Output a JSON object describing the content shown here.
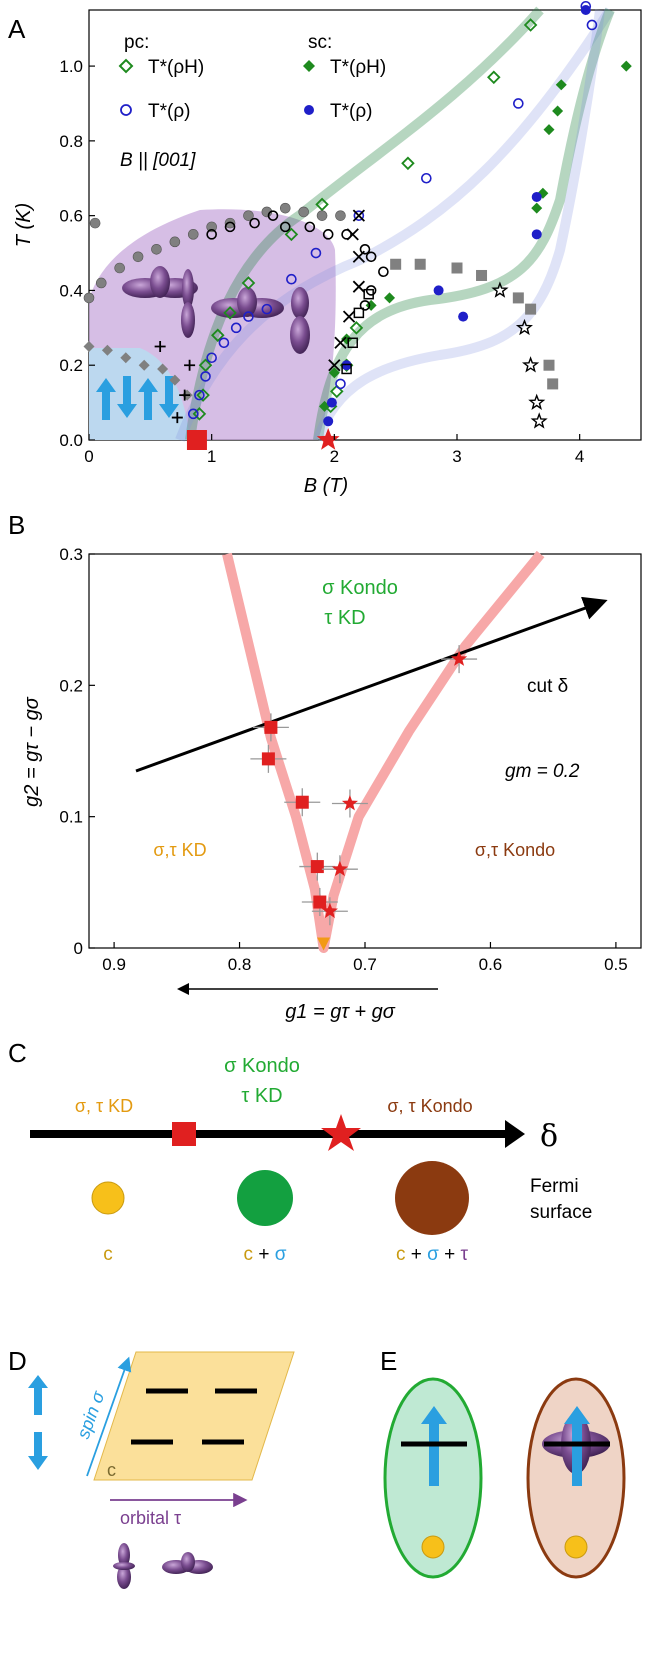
{
  "panels": {
    "a": "A",
    "b": "B",
    "c": "C",
    "d": "D",
    "e": "E"
  },
  "chart_data": [
    {
      "type": "scatter",
      "panel": "A",
      "xlabel": "B (T)",
      "ylabel": "T (K)",
      "xlim": [
        0,
        4.5
      ],
      "ylim": [
        0,
        1.15
      ],
      "xticks": [
        0,
        1,
        2,
        3,
        4
      ],
      "yticks": [
        0.0,
        0.2,
        0.4,
        0.6,
        0.8,
        1.0
      ],
      "legend": {
        "pc_title": "pc:",
        "sc_title": "sc:",
        "entry_rhoH": "T*(ρH)",
        "entry_rho": "T*(ρ)"
      },
      "annotation": "B || [001]",
      "series": [
        {
          "name": "pc T*(ρH)",
          "marker": "open-diamond",
          "color": "#1e8a1e",
          "points": [
            [
              0.9,
              0.07
            ],
            [
              0.93,
              0.12
            ],
            [
              0.95,
              0.2
            ],
            [
              1.05,
              0.28
            ],
            [
              1.15,
              0.34
            ],
            [
              1.3,
              0.42
            ],
            [
              1.65,
              0.55
            ],
            [
              1.9,
              0.63
            ],
            [
              2.6,
              0.74
            ],
            [
              3.3,
              0.97
            ],
            [
              3.6,
              1.11
            ],
            [
              1.97,
              0.09
            ],
            [
              2.02,
              0.13
            ],
            [
              2.1,
              0.2
            ],
            [
              2.18,
              0.3
            ]
          ]
        },
        {
          "name": "pc T*(ρ)",
          "marker": "open-circle",
          "color": "#1f1fc8",
          "points": [
            [
              0.85,
              0.07
            ],
            [
              0.9,
              0.12
            ],
            [
              0.95,
              0.17
            ],
            [
              1.0,
              0.22
            ],
            [
              1.1,
              0.26
            ],
            [
              1.2,
              0.3
            ],
            [
              1.3,
              0.33
            ],
            [
              1.45,
              0.35
            ],
            [
              1.65,
              0.43
            ],
            [
              1.85,
              0.5
            ],
            [
              2.2,
              0.6
            ],
            [
              2.75,
              0.7
            ],
            [
              3.5,
              0.9
            ],
            [
              4.1,
              1.11
            ],
            [
              4.05,
              1.16
            ],
            [
              2.05,
              0.15
            ]
          ]
        },
        {
          "name": "sc T*(ρH)",
          "marker": "filled-diamond",
          "color": "#1e8a1e",
          "points": [
            [
              1.92,
              0.09
            ],
            [
              2.0,
              0.18
            ],
            [
              2.1,
              0.27
            ],
            [
              2.3,
              0.36
            ],
            [
              2.45,
              0.38
            ],
            [
              3.65,
              0.62
            ],
            [
              3.7,
              0.66
            ],
            [
              3.75,
              0.83
            ],
            [
              3.82,
              0.88
            ],
            [
              3.85,
              0.95
            ],
            [
              4.38,
              1.0
            ]
          ]
        },
        {
          "name": "sc T*(ρ)",
          "marker": "filled-circle",
          "color": "#1f1fc8",
          "points": [
            [
              1.95,
              0.05
            ],
            [
              1.98,
              0.1
            ],
            [
              2.1,
              0.2
            ],
            [
              2.85,
              0.4
            ],
            [
              3.05,
              0.33
            ],
            [
              3.65,
              0.55
            ],
            [
              3.65,
              0.65
            ],
            [
              4.05,
              1.15
            ]
          ]
        },
        {
          "name": "gray circles",
          "marker": "filled-circle",
          "color": "#808080",
          "points": [
            [
              0.0,
              0.38
            ],
            [
              0.1,
              0.42
            ],
            [
              0.25,
              0.46
            ],
            [
              0.4,
              0.49
            ],
            [
              0.55,
              0.51
            ],
            [
              0.7,
              0.53
            ],
            [
              0.85,
              0.55
            ],
            [
              1.0,
              0.57
            ],
            [
              1.15,
              0.58
            ],
            [
              1.3,
              0.6
            ],
            [
              1.45,
              0.61
            ],
            [
              1.6,
              0.62
            ],
            [
              1.75,
              0.61
            ],
            [
              1.9,
              0.6
            ],
            [
              2.05,
              0.6
            ],
            [
              0.05,
              0.58
            ]
          ]
        },
        {
          "name": "open circles",
          "marker": "open-circle",
          "color": "#000000",
          "points": [
            [
              1.0,
              0.55
            ],
            [
              1.15,
              0.57
            ],
            [
              1.35,
              0.58
            ],
            [
              1.5,
              0.6
            ],
            [
              1.6,
              0.57
            ],
            [
              1.8,
              0.57
            ],
            [
              1.95,
              0.55
            ],
            [
              2.1,
              0.55
            ],
            [
              2.25,
              0.51
            ],
            [
              2.3,
              0.49
            ],
            [
              2.4,
              0.45
            ],
            [
              2.3,
              0.4
            ],
            [
              2.25,
              0.36
            ]
          ]
        },
        {
          "name": "gray diamonds",
          "marker": "filled-diamond",
          "color": "#808080",
          "points": [
            [
              0.0,
              0.25
            ],
            [
              0.15,
              0.24
            ],
            [
              0.3,
              0.22
            ],
            [
              0.45,
              0.2
            ],
            [
              0.6,
              0.19
            ],
            [
              0.7,
              0.16
            ],
            [
              0.8,
              0.12
            ]
          ]
        },
        {
          "name": "gray squares",
          "marker": "filled-square",
          "color": "#808080",
          "points": [
            [
              2.5,
              0.47
            ],
            [
              2.7,
              0.47
            ],
            [
              3.0,
              0.46
            ],
            [
              3.2,
              0.44
            ],
            [
              3.5,
              0.38
            ],
            [
              3.6,
              0.35
            ],
            [
              3.75,
              0.2
            ],
            [
              3.78,
              0.15
            ]
          ]
        },
        {
          "name": "open squares",
          "marker": "open-square",
          "color": "#000000",
          "points": [
            [
              2.28,
              0.39
            ],
            [
              2.2,
              0.34
            ],
            [
              2.15,
              0.26
            ],
            [
              2.1,
              0.19
            ]
          ]
        },
        {
          "name": "crosses",
          "marker": "x",
          "color": "#000000",
          "points": [
            [
              2.2,
              0.6
            ],
            [
              2.15,
              0.55
            ],
            [
              2.2,
              0.49
            ],
            [
              2.2,
              0.41
            ],
            [
              2.12,
              0.33
            ],
            [
              2.05,
              0.26
            ],
            [
              2.0,
              0.2
            ]
          ]
        },
        {
          "name": "plus",
          "marker": "plus",
          "color": "#000000",
          "points": [
            [
              0.58,
              0.25
            ],
            [
              0.82,
              0.2
            ],
            [
              0.78,
              0.12
            ],
            [
              0.72,
              0.06
            ]
          ]
        },
        {
          "name": "open stars",
          "marker": "open-star",
          "color": "#000000",
          "points": [
            [
              3.35,
              0.4
            ],
            [
              3.55,
              0.3
            ],
            [
              3.6,
              0.2
            ],
            [
              3.65,
              0.1
            ],
            [
              3.67,
              0.05
            ]
          ]
        },
        {
          "name": "QCP square",
          "marker": "filled-square",
          "color": "#e02020",
          "points": [
            [
              0.88,
              0.0
            ]
          ]
        },
        {
          "name": "QCP star",
          "marker": "filled-star",
          "color": "#e02020",
          "points": [
            [
              1.95,
              0.0
            ]
          ]
        }
      ]
    },
    {
      "type": "scatter",
      "panel": "B",
      "xlabel": "g1 = gτ + gσ",
      "ylabel": "g2 = gτ − gσ",
      "xlim": [
        0.92,
        0.48
      ],
      "ylim": [
        0,
        0.3
      ],
      "xticks": [
        0.9,
        0.8,
        0.7,
        0.6,
        0.5
      ],
      "yticks": [
        0,
        0.1,
        0.2,
        0.3
      ],
      "annotations": {
        "top_l1": "σ  Kondo",
        "top_l2": "τ  KD",
        "left": "σ,τ  KD",
        "right": "σ,τ  Kondo",
        "gm": "gm = 0.2",
        "cut": "cut δ"
      },
      "series": [
        {
          "name": "squares",
          "marker": "filled-square",
          "color": "#e02020",
          "points": [
            [
              0.775,
              0.168
            ],
            [
              0.777,
              0.144
            ],
            [
              0.75,
              0.111
            ],
            [
              0.738,
              0.062
            ],
            [
              0.736,
              0.035
            ]
          ]
        },
        {
          "name": "stars",
          "marker": "filled-star",
          "color": "#e02020",
          "points": [
            [
              0.625,
              0.22
            ],
            [
              0.712,
              0.11
            ],
            [
              0.72,
              0.06
            ],
            [
              0.728,
              0.028
            ]
          ]
        },
        {
          "name": "tip",
          "marker": "triangle-down",
          "color": "#f29a16",
          "points": [
            [
              0.733,
              0.003
            ]
          ]
        }
      ]
    }
  ],
  "panel_c": {
    "label_left": "σ, τ KD",
    "label_mid_l1": "σ Kondo",
    "label_mid_l2": "τ KD",
    "label_right": "σ, τ Kondo",
    "axis_symbol": "δ",
    "fs_l1": "Fermi",
    "fs_l2": "surface",
    "c1": "c",
    "c2a": "c",
    "c2b": "+",
    "c2c": "σ",
    "c3a": "c",
    "c3b": "+",
    "c3c": "σ",
    "c3d": "+",
    "c3e": "τ"
  },
  "panel_d": {
    "spin": "spin σ",
    "orbital": "orbital τ",
    "c": "c"
  },
  "colors": {
    "green": "#22aa33",
    "orange": "#f0b020",
    "brown": "#8b3a10",
    "red": "#e02020",
    "blue": "#2a9fe0",
    "purple": "#7a3f8f"
  }
}
